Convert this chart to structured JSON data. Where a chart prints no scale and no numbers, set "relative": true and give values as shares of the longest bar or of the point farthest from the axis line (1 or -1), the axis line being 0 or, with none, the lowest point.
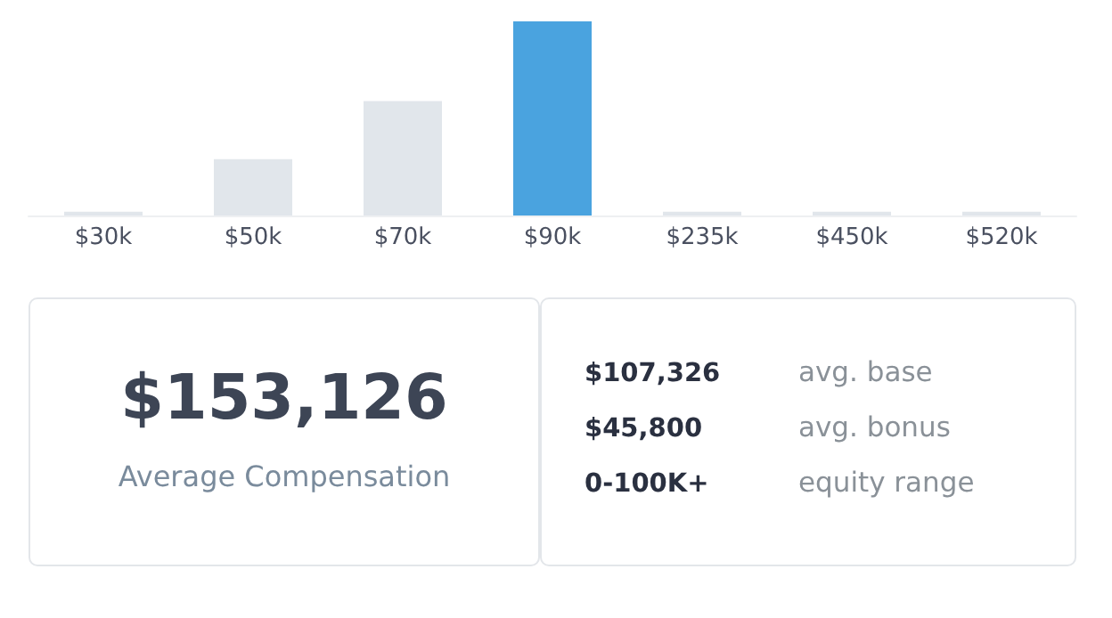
{
  "chart_data": [
    {
      "type": "bar",
      "relative": true,
      "categories": [
        "$30k",
        "$50k",
        "$70k",
        "$90k",
        "$235k",
        "$450k",
        "$520k"
      ],
      "values": [
        0.02,
        0.29,
        0.59,
        1,
        0.02,
        0.02,
        0.02
      ],
      "colors": [
        "#e1e6eb",
        "#e1e6eb",
        "#e1e6eb",
        "#4aa3df",
        "#e1e6eb",
        "#e1e6eb",
        "#e1e6eb"
      ]
    },
    {
      "type": "other",
      "title": "$153,126",
      "subtitle": "Average Compensation",
      "annotations": [
        "$107,326",
        "avg. base",
        "$45,800",
        "avg. bonus",
        "0-100K+",
        "equity range"
      ]
    }
  ]
}
